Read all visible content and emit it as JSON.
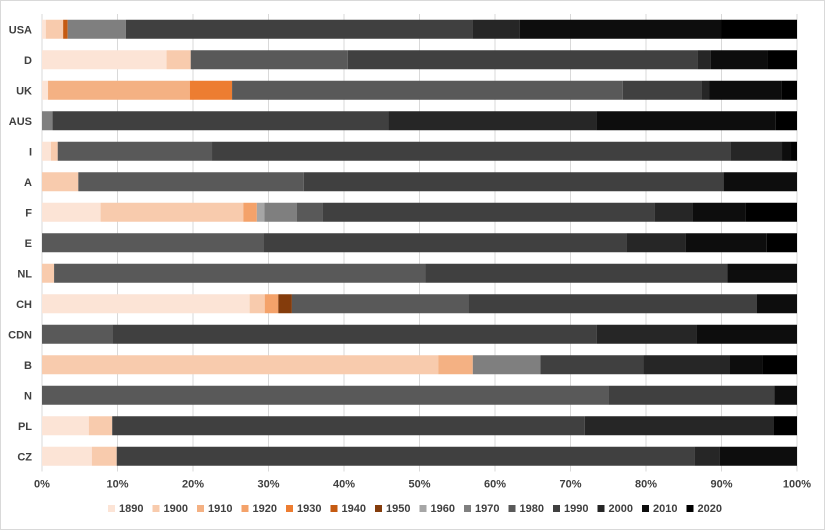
{
  "chart_data": {
    "type": "bar",
    "orientation": "horizontal",
    "stacked": "percent",
    "title": "",
    "xlabel": "",
    "ylabel": "",
    "xlim": [
      0,
      100
    ],
    "x_ticks": [
      "0%",
      "10%",
      "20%",
      "30%",
      "40%",
      "50%",
      "60%",
      "70%",
      "80%",
      "90%",
      "100%"
    ],
    "grid": "vertical",
    "legend_position": "bottom",
    "categories": [
      "USA",
      "D",
      "UK",
      "AUS",
      "I",
      "A",
      "F",
      "E",
      "NL",
      "CH",
      "CDN",
      "B",
      "N",
      "PL",
      "CZ"
    ],
    "series": [
      {
        "name": "1890",
        "color": "#fce4d6",
        "values": [
          0.5,
          16.5,
          0.8,
          0,
          1.2,
          0,
          7.8,
          0,
          0,
          27.5,
          0,
          0,
          0,
          6.2,
          6.6
        ]
      },
      {
        "name": "1900",
        "color": "#f8cbad",
        "values": [
          2.3,
          3.2,
          0,
          0,
          0.9,
          4.8,
          19,
          0,
          1.6,
          2,
          0,
          55,
          0,
          3.1,
          3.3
        ]
      },
      {
        "name": "1910",
        "color": "#f4b183",
        "values": [
          0,
          0,
          18.8,
          0,
          0,
          0,
          0,
          0,
          0,
          0,
          0,
          4.8,
          0,
          0,
          0
        ]
      },
      {
        "name": "1920",
        "color": "#f4a26a",
        "values": [
          0,
          0,
          0,
          0,
          0,
          0,
          1.8,
          0,
          0,
          1.8,
          0,
          0,
          0,
          0,
          0
        ]
      },
      {
        "name": "1930",
        "color": "#ed7d31",
        "values": [
          0,
          0,
          5.6,
          0,
          0,
          0,
          0,
          0,
          0,
          0,
          0,
          0,
          0,
          0,
          0
        ]
      },
      {
        "name": "1940",
        "color": "#c55a11",
        "values": [
          0.6,
          0,
          0,
          0,
          0,
          0,
          0,
          0,
          0,
          0,
          0,
          0,
          0,
          0,
          0
        ]
      },
      {
        "name": "1950",
        "color": "#843c0c",
        "values": [
          0,
          0,
          0,
          0,
          0,
          0,
          0,
          0,
          0,
          1.8,
          0,
          0,
          0,
          0,
          0
        ]
      },
      {
        "name": "1960",
        "color": "#a6a6a6",
        "values": [
          0,
          0,
          0,
          0,
          0,
          0,
          1,
          0,
          0,
          0,
          0,
          0,
          0,
          0,
          0
        ]
      },
      {
        "name": "1970",
        "color": "#7f7f7f",
        "values": [
          7.7,
          0,
          0,
          1.4,
          0,
          0,
          4.3,
          0,
          0,
          0,
          0,
          9.4,
          0,
          0,
          0
        ]
      },
      {
        "name": "1980",
        "color": "#595959",
        "values": [
          0,
          20.8,
          51.8,
          0,
          20.6,
          29.8,
          3.5,
          29.3,
          49.2,
          23.4,
          9.3,
          0,
          75,
          0,
          0
        ]
      },
      {
        "name": "1990",
        "color": "#404040",
        "values": [
          45.9,
          46.3,
          10.4,
          44.5,
          69.2,
          55.5,
          44.1,
          48.1,
          40,
          38.2,
          64.2,
          14.3,
          22,
          62.6,
          76.5
        ]
      },
      {
        "name": "2000",
        "color": "#262626",
        "values": [
          6.3,
          1.8,
          1.1,
          27.5,
          6.9,
          0,
          5.1,
          7.8,
          0,
          0,
          13.2,
          12,
          0,
          25,
          3.3
        ]
      },
      {
        "name": "2010",
        "color": "#0d0d0d",
        "values": [
          26.7,
          7.5,
          9.6,
          23.8,
          1.2,
          9.7,
          7,
          10.8,
          9.2,
          5.3,
          13.3,
          4.5,
          3,
          0,
          10.3
        ]
      },
      {
        "name": "2020",
        "color": "#000000",
        "values": [
          10,
          3.9,
          2,
          2.8,
          0.8,
          0,
          6.9,
          4,
          0,
          0,
          0,
          4.8,
          0,
          3.1,
          0
        ]
      }
    ]
  }
}
